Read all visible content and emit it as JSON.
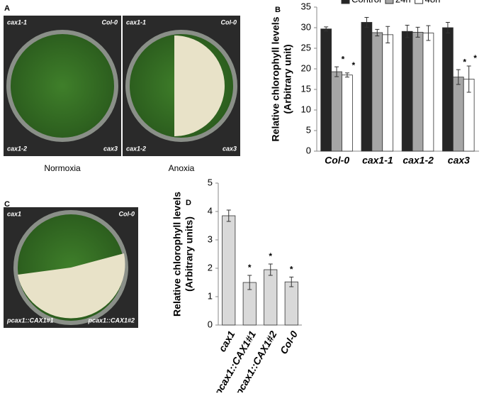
{
  "panel_labels": [
    "A",
    "B",
    "C",
    "D"
  ],
  "photos": [
    {
      "labels": [
        "cax1-1",
        "Col-0",
        "cax1-2",
        "cax3"
      ],
      "caption": "Normoxia"
    },
    {
      "labels": [
        "cax1-1",
        "Col-0",
        "cax1-2",
        "cax3"
      ],
      "caption": "Anoxia"
    },
    {
      "labels": [
        "cax1",
        "Col-0",
        "pcax1::CAX1#1",
        "pcax1::CAX1#2"
      ]
    }
  ],
  "chart_data": [
    {
      "type": "bar",
      "ylabel": [
        "Relative chlorophyll levels",
        "(Arbitrary unit)"
      ],
      "categories": [
        "Col-0",
        "cax1-1",
        "cax1-2",
        "cax3"
      ],
      "series": [
        {
          "name": "Control",
          "color": "#262626",
          "values": [
            29.7,
            31.3,
            29.1,
            30.0
          ],
          "errors": [
            0.5,
            1.2,
            1.5,
            1.3
          ],
          "significance": [
            null,
            null,
            null,
            null
          ]
        },
        {
          "name": "24h",
          "color": "#a6a6a6",
          "values": [
            19.3,
            28.8,
            28.9,
            18.0
          ],
          "errors": [
            1.2,
            0.8,
            1.2,
            1.8
          ],
          "significance": [
            "*",
            null,
            null,
            "*"
          ]
        },
        {
          "name": "48h",
          "color": "#ffffff",
          "values": [
            18.5,
            28.3,
            28.7,
            17.5
          ],
          "errors": [
            0.5,
            2.0,
            1.8,
            3.2
          ],
          "significance": [
            "*",
            null,
            null,
            "*"
          ]
        }
      ],
      "ylim": [
        0,
        35
      ],
      "yticks": [
        0,
        5,
        10,
        15,
        20,
        25,
        30,
        35
      ],
      "legend": "top"
    },
    {
      "type": "bar",
      "ylabel": [
        "Relative chlorophyll levels",
        "(Arbitrary units)"
      ],
      "categories": [
        "cax1",
        "pcax1::CAX1#1",
        "pcax1::CAX1#2",
        "Col-0"
      ],
      "values": [
        3.85,
        1.5,
        1.95,
        1.52
      ],
      "errors": [
        0.2,
        0.25,
        0.2,
        0.17
      ],
      "significance": [
        null,
        "*",
        "*",
        "*"
      ],
      "color": "#d9d9d9",
      "ylim": [
        0,
        5
      ],
      "yticks": [
        0,
        1,
        2,
        3,
        4,
        5
      ]
    }
  ]
}
